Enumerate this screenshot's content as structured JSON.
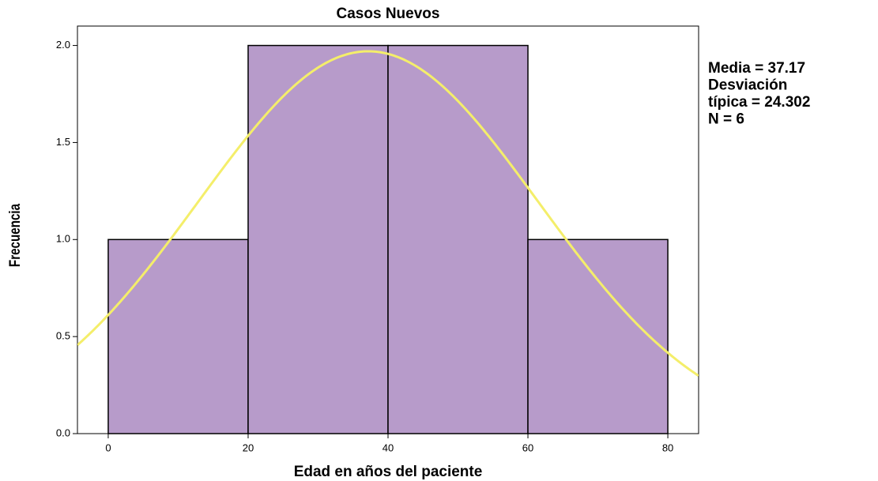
{
  "chart_data": {
    "type": "histogram",
    "title": "Casos Nuevos",
    "x_label": "Edad en años del paciente",
    "y_label": "Frecuencia",
    "bins": [
      0,
      20,
      40,
      60,
      80
    ],
    "values": [
      1,
      2,
      2,
      1
    ],
    "color": "#b79bca",
    "edge_color": "#000000",
    "xlim": [
      -4.4,
      84.4
    ],
    "ylim": [
      0,
      2.1
    ],
    "xticks": [
      0,
      20,
      40,
      60,
      80
    ],
    "yticks": [
      {
        "value": 0,
        "label": "0.0"
      },
      {
        "value": 0.5,
        "label": "0.5"
      },
      {
        "value": 1,
        "label": "1.0"
      },
      {
        "value": 1.5,
        "label": "1.5"
      },
      {
        "value": 2,
        "label": "2.0"
      }
    ],
    "normal_curve": {
      "mean": 37.17,
      "sd": 24.302,
      "n": 6,
      "color": "#f4ee6a"
    },
    "annotations": [
      "Media = 37.17",
      "Desviación",
      "típica = 24.302",
      "N = 6"
    ]
  }
}
